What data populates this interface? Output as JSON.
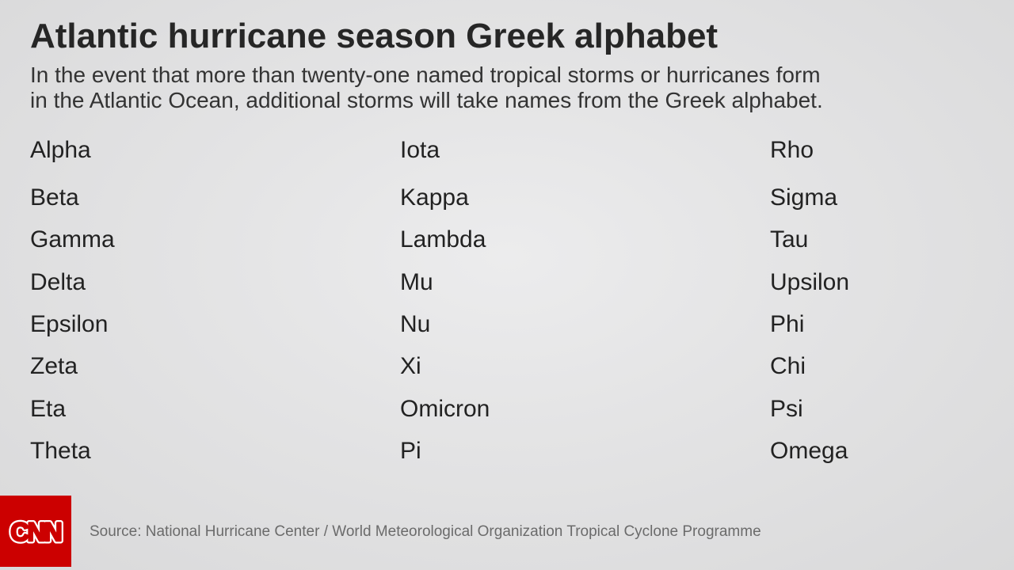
{
  "header": {
    "title": "Atlantic hurricane season Greek alphabet",
    "subtitle_lines": [
      "In the event that more than twenty-one named tropical storms or hurricanes form",
      "in the Atlantic Ocean, additional storms will take names from the Greek alphabet."
    ]
  },
  "names": {
    "columns": [
      [
        "Alpha",
        "Beta",
        "Gamma",
        "Delta",
        "Epsilon",
        "Zeta",
        "Eta",
        "Theta"
      ],
      [
        "Iota",
        "Kappa",
        "Lambda",
        "Mu",
        "Nu",
        "Xi",
        "Omicron",
        "Pi"
      ],
      [
        "Rho",
        "Sigma",
        "Tau",
        "Upsilon",
        "Phi",
        "Chi",
        "Psi",
        "Omega"
      ]
    ]
  },
  "footer": {
    "logo_text": "CNN",
    "logo_color": "#cc0000",
    "source": "Source: National Hurricane Center / World Meteorological Organization Tropical Cyclone Programme"
  }
}
